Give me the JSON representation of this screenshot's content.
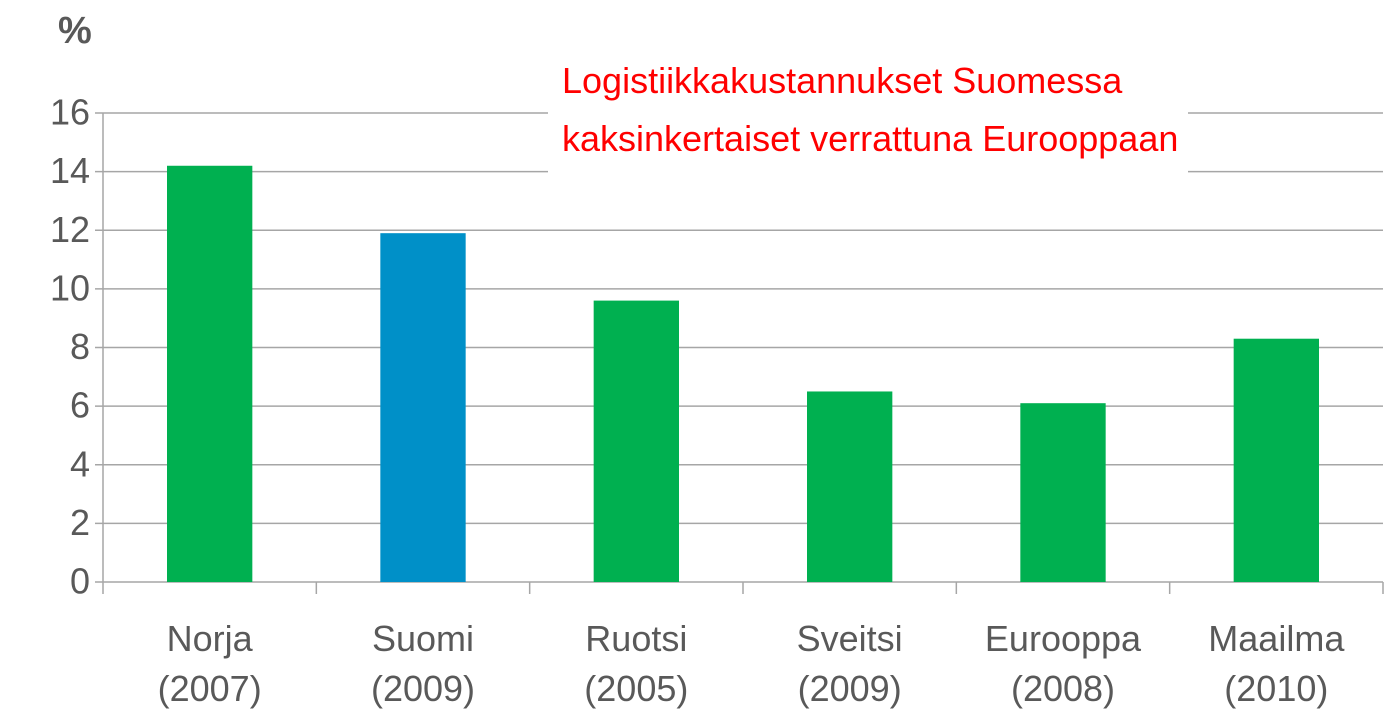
{
  "chart_data": {
    "type": "bar",
    "title": "Logistiikkakustannukset Suomessa\nkaksinkertaiset verrattuna Eurooppaan",
    "y_label": "%",
    "categories": [
      "Norja\n(2007)",
      "Suomi\n(2009)",
      "Ruotsi\n(2005)",
      "Sveitsi\n(2009)",
      "Eurooppa\n(2008)",
      "Maailma\n(2010)"
    ],
    "values": [
      14.2,
      11.9,
      9.6,
      6.5,
      6.1,
      8.3
    ],
    "colors": [
      "#00b050",
      "#0090c8",
      "#00b050",
      "#00b050",
      "#00b050",
      "#00b050"
    ],
    "ylim": [
      0,
      16
    ],
    "yticks": [
      0,
      2,
      4,
      6,
      8,
      10,
      12,
      14,
      16
    ],
    "grid": true
  }
}
